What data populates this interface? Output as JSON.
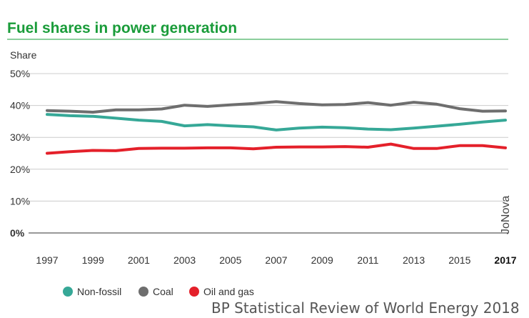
{
  "chart_data": {
    "type": "line",
    "title": "Fuel shares in power generation",
    "ylabel": "Share",
    "xlabel": "",
    "ylim": [
      0,
      50
    ],
    "yticks": [
      0,
      10,
      20,
      30,
      40,
      50
    ],
    "ytick_labels": [
      "0%",
      "10%",
      "20%",
      "30%",
      "40%",
      "50%"
    ],
    "xlim": [
      1997,
      2017
    ],
    "xticks": [
      1997,
      1999,
      2001,
      2003,
      2005,
      2007,
      2009,
      2011,
      2013,
      2015,
      2017
    ],
    "xtick_labels": [
      "1997",
      "1999",
      "2001",
      "2003",
      "2005",
      "2007",
      "2009",
      "2011",
      "2013",
      "2015",
      "2017"
    ],
    "x": [
      1997,
      1998,
      1999,
      2000,
      2001,
      2002,
      2003,
      2004,
      2005,
      2006,
      2007,
      2008,
      2009,
      2010,
      2011,
      2012,
      2013,
      2014,
      2015,
      2016,
      2017
    ],
    "series": [
      {
        "name": "Non-fossil",
        "color": "#36a897",
        "values": [
          37.2,
          36.8,
          36.6,
          36.0,
          35.4,
          35.0,
          33.6,
          34.0,
          33.6,
          33.3,
          32.3,
          32.9,
          33.2,
          33.0,
          32.6,
          32.4,
          32.9,
          33.5,
          34.1,
          34.8,
          35.4
        ]
      },
      {
        "name": "Coal",
        "color": "#6e6e6e",
        "values": [
          38.4,
          38.2,
          37.9,
          38.6,
          38.6,
          38.9,
          40.1,
          39.7,
          40.2,
          40.6,
          41.2,
          40.6,
          40.2,
          40.3,
          40.9,
          40.1,
          41.0,
          40.4,
          39.0,
          38.2,
          38.3
        ]
      },
      {
        "name": "Oil and gas",
        "color": "#e4202a",
        "values": [
          25.0,
          25.5,
          25.9,
          25.8,
          26.5,
          26.6,
          26.6,
          26.7,
          26.7,
          26.4,
          26.9,
          27.0,
          27.0,
          27.1,
          26.9,
          27.9,
          26.5,
          26.5,
          27.4,
          27.4,
          26.7
        ]
      }
    ],
    "bold_tick": "2017",
    "legend": "bottom-left",
    "watermark": "JoNova",
    "grid": true
  },
  "source": "BP Statistical Review of World Energy 2018",
  "colors": {
    "title": "#1a9c3a",
    "grid": "#cccccc",
    "axis_text": "#333333"
  }
}
